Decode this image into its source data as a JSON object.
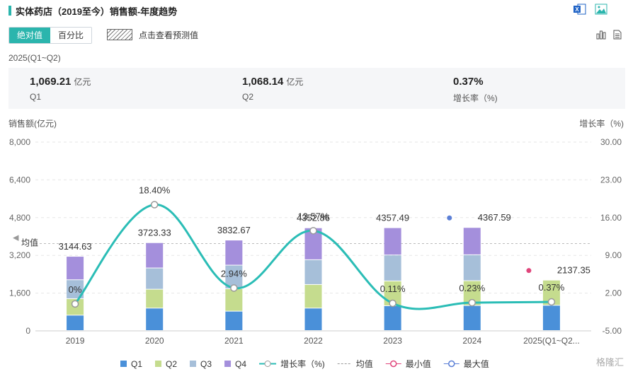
{
  "header": {
    "title": "实体药店（2019至今）销售额-年度趋势",
    "icons": [
      "excel-icon",
      "image-icon"
    ]
  },
  "toolbar": {
    "toggle": [
      "绝对值",
      "百分比"
    ],
    "toggle_active": 0,
    "forecast_label": "点击查看预测值",
    "view_icons": [
      "bar-chart-icon",
      "table-icon"
    ]
  },
  "summary": {
    "period": "2025(Q1~Q2)",
    "items": [
      {
        "value": "1,069.21",
        "unit": "亿元",
        "label": "Q1"
      },
      {
        "value": "1,068.14",
        "unit": "亿元",
        "label": "Q2"
      },
      {
        "value": "0.37%",
        "unit": "",
        "label": "增长率（%)"
      }
    ]
  },
  "chart_data": {
    "type": "bar",
    "stacked": true,
    "categories": [
      "2019",
      "2020",
      "2021",
      "2022",
      "2023",
      "2024",
      "2025(Q1~Q2..."
    ],
    "series": [
      {
        "name": "Q1",
        "color": "#4a90d9",
        "values": [
          650,
          950,
          820,
          950,
          1050,
          1060,
          1069.21
        ]
      },
      {
        "name": "Q2",
        "color": "#c5dc8e",
        "values": [
          700,
          800,
          950,
          1000,
          1050,
          1050,
          1068.14
        ]
      },
      {
        "name": "Q3",
        "color": "#a6bfd9",
        "values": [
          800,
          900,
          1000,
          1050,
          1100,
          1100,
          0
        ]
      },
      {
        "name": "Q4",
        "color": "#a48fdc",
        "values": [
          994.63,
          1073.33,
          1062.67,
          1352.86,
          1157.49,
          1157.59,
          0
        ]
      }
    ],
    "totals": [
      "3144.63",
      "3723.33",
      "3832.67",
      "4352.86",
      "4357.49",
      "4367.59",
      "2137.35"
    ],
    "growth": {
      "name": "增长率（%)",
      "color": "#2bbdb6",
      "values": [
        0,
        18.4,
        2.94,
        13.57,
        0.11,
        0.23,
        0.37
      ],
      "labels": [
        "0%",
        "18.40%",
        "2.94%",
        "13.57%",
        "0.11%",
        "0.23%",
        "0.37%"
      ]
    },
    "mean": {
      "label": "均值",
      "value": 3700
    },
    "max_marker": {
      "index": 5,
      "color": "#5b7fd6"
    },
    "min_marker": {
      "index": 6,
      "color": "#e0457b"
    },
    "ylabel": "销售额(亿元)",
    "ylabel_right": "增长率（%)",
    "ylim": [
      0,
      8000
    ],
    "yticks": [
      "0",
      "1,600",
      "3,200",
      "4,800",
      "6,400",
      "8,000"
    ],
    "ylim_right": [
      -5,
      30
    ],
    "yticks_right": [
      "-5.00",
      "2.00",
      "9.00",
      "16.00",
      "23.00",
      "30.00"
    ],
    "grid": true,
    "legend_position": "bottom",
    "legend": [
      {
        "name": "Q1",
        "kind": "square",
        "color": "#4a90d9"
      },
      {
        "name": "Q2",
        "kind": "square",
        "color": "#c5dc8e"
      },
      {
        "name": "Q3",
        "kind": "square",
        "color": "#a6bfd9"
      },
      {
        "name": "Q4",
        "kind": "square",
        "color": "#a48fdc"
      },
      {
        "name": "增长率（%)",
        "kind": "line",
        "color": "#2bbdb6"
      },
      {
        "name": "均值",
        "kind": "dash",
        "color": "#999999"
      },
      {
        "name": "最小值",
        "kind": "circle",
        "color": "#e0457b"
      },
      {
        "name": "最大值",
        "kind": "circle",
        "color": "#5b7fd6"
      }
    ]
  },
  "watermark": "格隆汇"
}
